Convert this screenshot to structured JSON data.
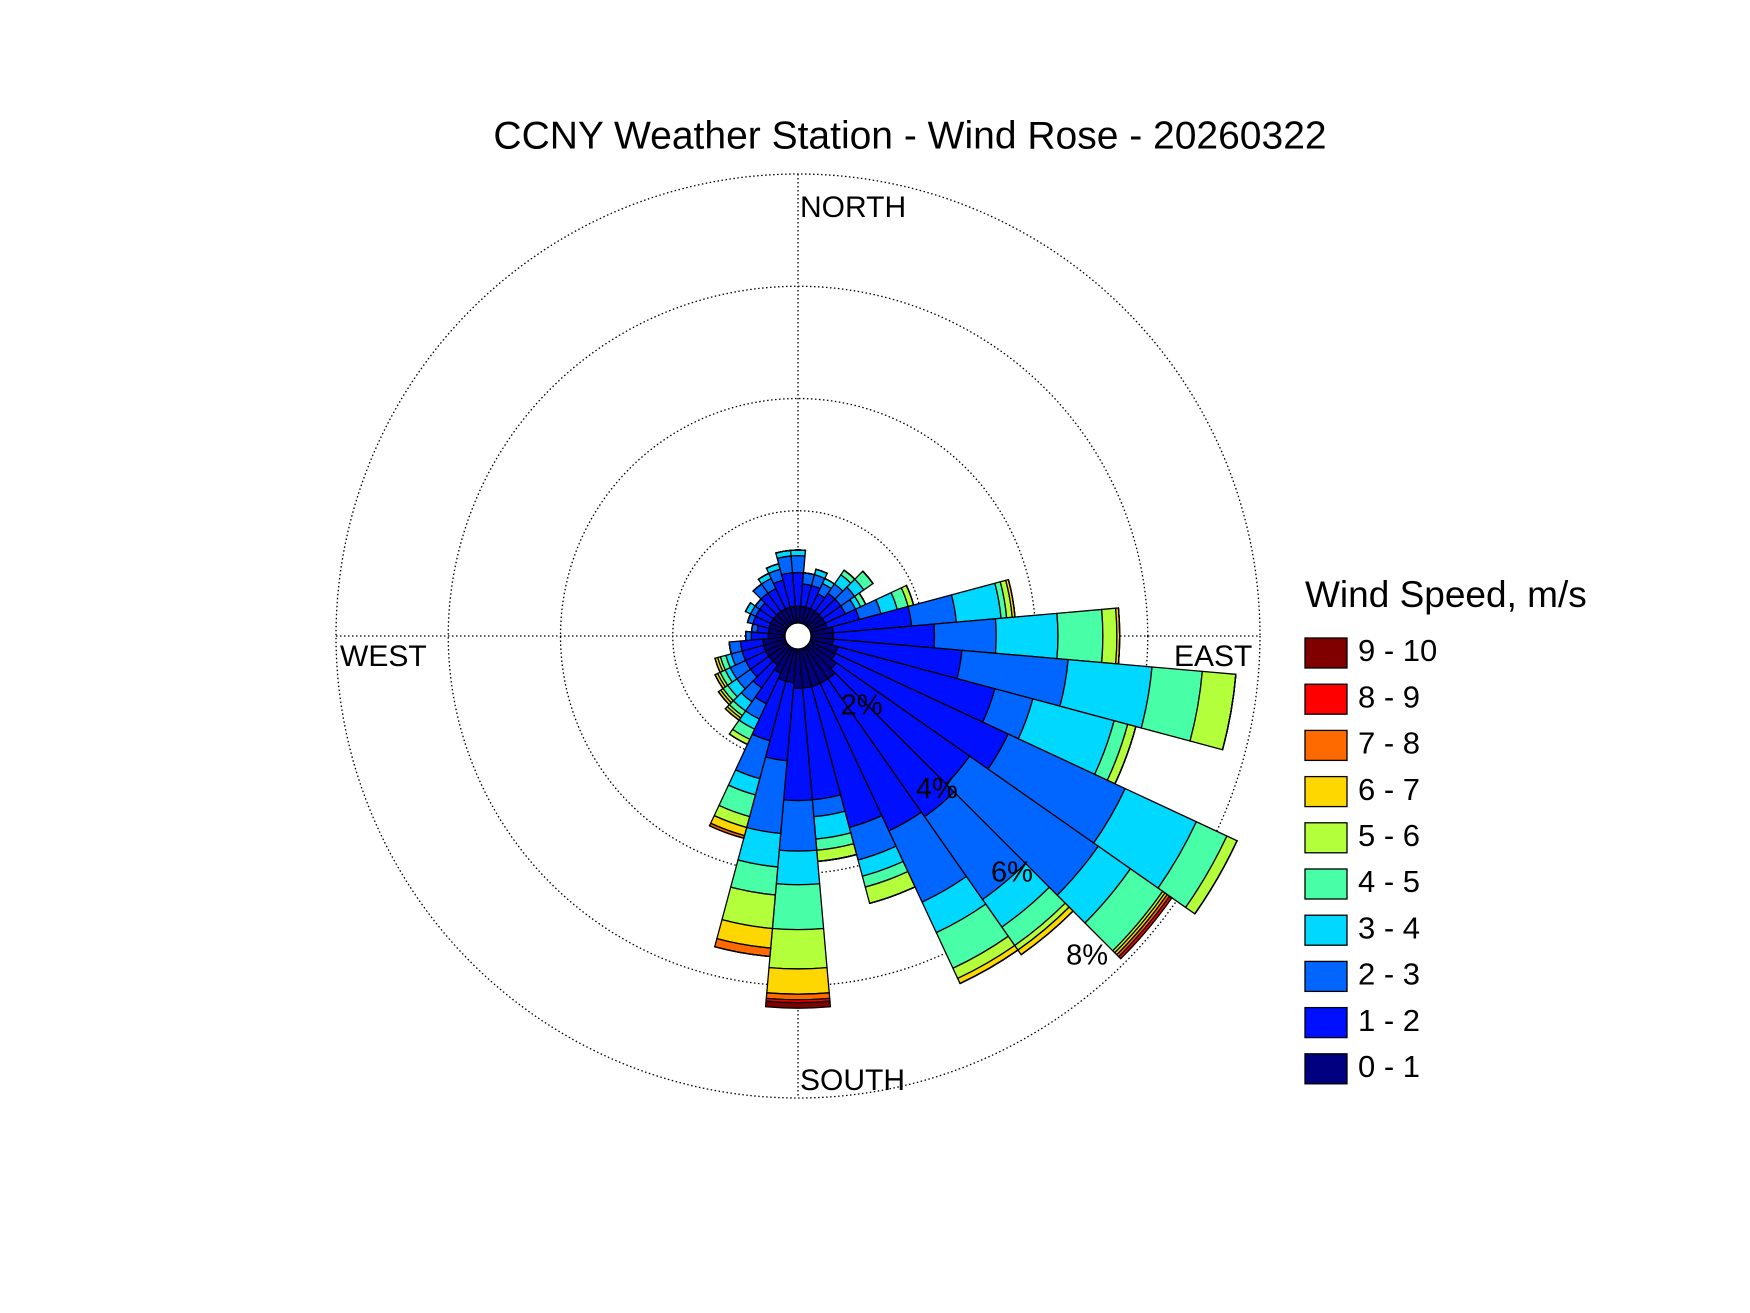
{
  "chart_data": {
    "type": "windrose",
    "title": "CCNY Weather Station - Wind Rose - 20260322",
    "compass": {
      "north": "NORTH",
      "east": "EAST",
      "south": "SOUTH",
      "west": "WEST"
    },
    "legend_title": "Wind Speed, m/s",
    "directions": [
      0,
      10,
      20,
      30,
      40,
      50,
      60,
      70,
      80,
      90,
      100,
      110,
      120,
      130,
      140,
      150,
      160,
      170,
      180,
      190,
      200,
      210,
      220,
      230,
      240,
      250,
      260,
      270,
      280,
      290,
      300,
      310,
      320,
      330,
      340,
      350
    ],
    "rlim": [
      0,
      8
    ],
    "rticks": [
      {
        "value": 2,
        "label": "2%"
      },
      {
        "value": 4,
        "label": "4%"
      },
      {
        "value": 6,
        "label": "6%"
      },
      {
        "value": 8,
        "label": "8%"
      }
    ],
    "grid": true,
    "series": [
      {
        "name": "0 - 1",
        "color": "#000080",
        "values": [
          0.3,
          0.3,
          0.3,
          0.3,
          0.3,
          0.3,
          0.3,
          0.3,
          0.4,
          0.4,
          0.4,
          0.5,
          0.5,
          0.6,
          0.7,
          0.7,
          0.7,
          0.7,
          0.7,
          0.6,
          0.6,
          0.5,
          0.4,
          0.4,
          0.4,
          0.4,
          0.4,
          0.3,
          0.3,
          0.3,
          0.3,
          0.3,
          0.3,
          0.3,
          0.3,
          0.3
        ]
      },
      {
        "name": "1 - 2",
        "color": "#0010ff",
        "values": [
          0.6,
          0.4,
          0.4,
          0.3,
          0.4,
          0.4,
          0.4,
          0.6,
          1.4,
          1.8,
          2.3,
          2.9,
          3.4,
          2.9,
          3.0,
          2.9,
          2.6,
          2.0,
          2.0,
          1.4,
          1.1,
          0.6,
          0.5,
          0.4,
          0.4,
          0.4,
          0.4,
          0.3,
          0.2,
          0.3,
          0.3,
          0.3,
          0.4,
          0.4,
          0.5,
          0.6
        ]
      },
      {
        "name": "2 - 3",
        "color": "#0066ff",
        "values": [
          0.3,
          0.2,
          0.2,
          0.2,
          0.2,
          0.3,
          0.2,
          0.4,
          0.8,
          1.1,
          1.9,
          0.7,
          2.3,
          2.8,
          1.8,
          1.4,
          0.6,
          0.3,
          0.9,
          1.3,
          0.7,
          0.3,
          0.3,
          0.3,
          0.3,
          0.2,
          0.2,
          0.1,
          0.1,
          0.1,
          0.1,
          0.1,
          0.2,
          0.2,
          0.2,
          0.3
        ]
      },
      {
        "name": "3 - 4",
        "color": "#00d8ff",
        "values": [
          0.1,
          0,
          0.1,
          0.1,
          0.2,
          0.2,
          0.1,
          0.3,
          0.8,
          1.1,
          1.5,
          1.5,
          1.4,
          0.7,
          0.6,
          0.6,
          0.3,
          0.4,
          0.6,
          0.6,
          0.3,
          0.2,
          0.2,
          0.2,
          0.1,
          0.1,
          0,
          0,
          0,
          0,
          0.1,
          0,
          0,
          0.1,
          0.1,
          0.1
        ]
      },
      {
        "name": "4 - 5",
        "color": "#48ffa8",
        "values": [
          0,
          0,
          0,
          0,
          0.1,
          0.2,
          0.1,
          0.2,
          0.1,
          0.8,
          0.9,
          0.25,
          0.6,
          0.7,
          0.4,
          0.7,
          0.2,
          0.2,
          0.8,
          0.5,
          0.4,
          0.2,
          0.1,
          0.1,
          0.1,
          0.1,
          0,
          0,
          0,
          0,
          0,
          0,
          0,
          0,
          0,
          0
        ]
      },
      {
        "name": "5 - 6",
        "color": "#b4ff3c",
        "values": [
          0,
          0,
          0,
          0,
          0,
          0,
          0,
          0.1,
          0.1,
          0.25,
          0.6,
          0.15,
          0.2,
          0.05,
          0.1,
          0.2,
          0.3,
          0.2,
          0.7,
          0.6,
          0.2,
          0.1,
          0.05,
          0.05,
          0.05,
          0.05,
          0,
          0,
          0,
          0,
          0,
          0,
          0,
          0,
          0,
          0
        ]
      },
      {
        "name": "6 - 7",
        "color": "#ffd700",
        "values": [
          0,
          0,
          0,
          0,
          0,
          0,
          0,
          0,
          0.05,
          0.05,
          0,
          0,
          0,
          0.05,
          0.1,
          0.1,
          0,
          0,
          0.45,
          0.35,
          0.15,
          0,
          0.05,
          0.05,
          0.05,
          0.05,
          0,
          0,
          0,
          0,
          0,
          0,
          0,
          0,
          0,
          0
        ]
      },
      {
        "name": "7 - 8",
        "color": "#ff6a00",
        "values": [
          0,
          0,
          0,
          0,
          0,
          0,
          0,
          0,
          0,
          0,
          0,
          0,
          0,
          0.05,
          0,
          0,
          0,
          0,
          0.1,
          0.15,
          0.05,
          0,
          0,
          0,
          0,
          0,
          0,
          0,
          0,
          0,
          0,
          0,
          0,
          0,
          0,
          0
        ]
      },
      {
        "name": "8 - 9",
        "color": "#ff0000",
        "values": [
          0,
          0,
          0,
          0,
          0,
          0,
          0,
          0,
          0,
          0,
          0,
          0,
          0,
          0.05,
          0,
          0,
          0,
          0,
          0.05,
          0,
          0,
          0,
          0,
          0,
          0,
          0,
          0,
          0,
          0,
          0,
          0,
          0,
          0,
          0,
          0,
          0
        ]
      },
      {
        "name": "9 - 10",
        "color": "#800000",
        "values": [
          0,
          0,
          0,
          0,
          0,
          0,
          0,
          0,
          0,
          0,
          0,
          0,
          0,
          0,
          0,
          0,
          0,
          0,
          0.1,
          0,
          0,
          0,
          0,
          0,
          0,
          0,
          0,
          0,
          0,
          0,
          0,
          0,
          0,
          0,
          0,
          0
        ]
      }
    ]
  }
}
